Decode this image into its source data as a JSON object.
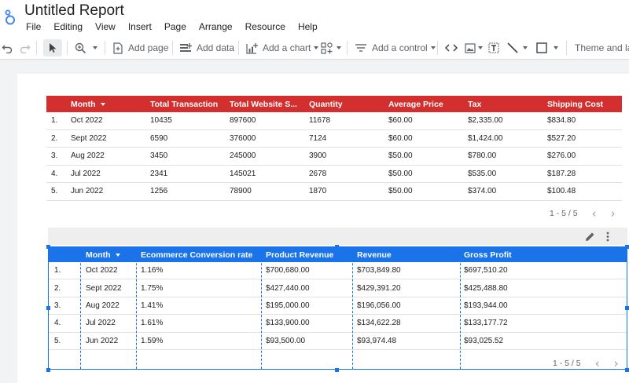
{
  "app": {
    "title": "Untitled Report",
    "menu": [
      "File",
      "Editing",
      "View",
      "Insert",
      "Page",
      "Arrange",
      "Resource",
      "Help"
    ]
  },
  "toolbar": {
    "add_page": "Add page",
    "add_data": "Add data",
    "add_chart": "Add a chart",
    "add_control": "Add a control",
    "theme_layout": "Theme and layout"
  },
  "table1": {
    "headers": [
      "Month",
      "Total Transaction",
      "Total Website S...",
      "Quantity",
      "Average Price",
      "Tax",
      "Shipping Cost"
    ],
    "rows": [
      [
        "1.",
        "Oct 2022",
        "10435",
        "897600",
        "11678",
        "$60.00",
        "$2,335.00",
        "$834.80"
      ],
      [
        "2.",
        "Sept 2022",
        "6590",
        "376000",
        "7124",
        "$60.00",
        "$1,424.00",
        "$527.20"
      ],
      [
        "3.",
        "Aug 2022",
        "3450",
        "245000",
        "3900",
        "$50.00",
        "$780.00",
        "$276.00"
      ],
      [
        "4.",
        "Jul 2022",
        "2341",
        "145021",
        "2678",
        "$50.00",
        "$535.00",
        "$187.28"
      ],
      [
        "5.",
        "Jun 2022",
        "1256",
        "78900",
        "1870",
        "$50.00",
        "$374.00",
        "$100.48"
      ]
    ],
    "pagination": "1 - 5 / 5"
  },
  "table2": {
    "headers": [
      "Month",
      "Ecommerce Conversion rate",
      "Product Revenue",
      "Revenue",
      "Gross Profit"
    ],
    "rows": [
      [
        "1.",
        "Oct 2022",
        "1.16%",
        "$700,680.00",
        "$703,849.80",
        "$697,510.20"
      ],
      [
        "2.",
        "Sept 2022",
        "1.75%",
        "$427,440.00",
        "$429,391.20",
        "$425,488.80"
      ],
      [
        "3.",
        "Aug 2022",
        "1.41%",
        "$195,000.00",
        "$196,056.00",
        "$193,944.00"
      ],
      [
        "4.",
        "Jul 2022",
        "1.61%",
        "$133,900.00",
        "$134,622.28",
        "$133,177.72"
      ],
      [
        "5.",
        "Jun 2022",
        "1.59%",
        "$93,500.00",
        "$93,974.48",
        "$93,025.52"
      ]
    ],
    "pagination": "1 - 5 / 5"
  },
  "colors": {
    "table1_header": "#d32f2f",
    "table2_header": "#1a73e8",
    "canvas_bg": "#f1f3f4"
  }
}
